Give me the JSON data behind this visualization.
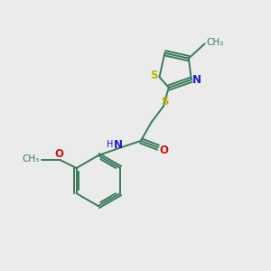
{
  "background_color": "#ebebeb",
  "bond_color": "#3a7a5a",
  "S_color": "#b8b800",
  "N_color": "#1a1acc",
  "O_color": "#cc1111",
  "figsize": [
    3.0,
    3.0
  ],
  "dpi": 100,
  "xlim": [
    0,
    10
  ],
  "ylim": [
    0,
    10
  ]
}
